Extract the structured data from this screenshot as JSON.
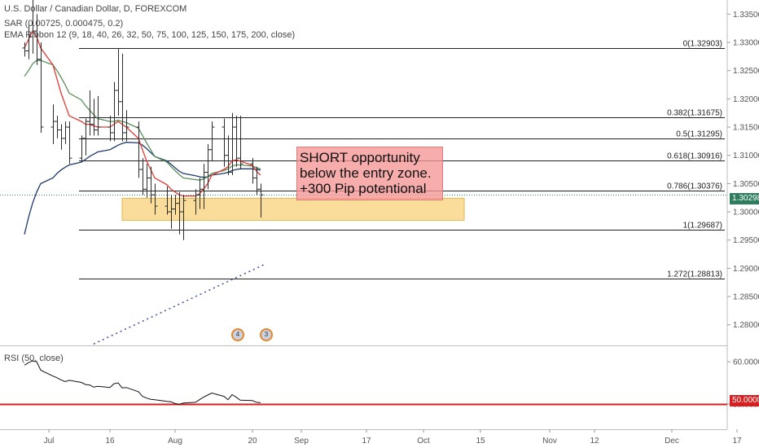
{
  "header": {
    "title": "U.S. Dollar / Canadian Dollar, D, FOREXCOM",
    "indicator_sar": "SAR (0.00725, 0.000475, 0.2)",
    "indicator_ema": "EMA Ribbon 12 (9, 18, 40, 26, 32, 50, 75, 100, 125, 150, 175, 200, close)",
    "indicator_rsi": "RSI (50, close)"
  },
  "annotation": {
    "lines": [
      "SHORT opportunity",
      "below the entry zone.",
      "+300 Pip potentional"
    ]
  },
  "price_tags": {
    "current": "1.30298",
    "rsi_level": "50.0000"
  },
  "colors": {
    "candle": "#2b2b2b",
    "ema_red": "#e53935",
    "ema_green": "#5a8f5a",
    "ema_navy": "#1f3a6e",
    "fib_line": "#222222",
    "zone_fill": "#f8d27a",
    "rsi_line": "#111111",
    "rsi_level": "#d81e1e",
    "trend_dotted": "#3a4fa0",
    "current_price": "#2e7d5e"
  },
  "events": [
    {
      "label": "4"
    },
    {
      "label": "3"
    }
  ],
  "chart_data": {
    "type": "candlestick",
    "x_axis_labels": [
      {
        "label": "Jul",
        "date": "2018-07-01"
      },
      {
        "label": "16",
        "date": "2018-07-16"
      },
      {
        "label": "Aug",
        "date": "2018-08-01"
      },
      {
        "label": "20",
        "date": "2018-08-20"
      },
      {
        "label": "Sep",
        "date": "2018-09-01"
      },
      {
        "label": "17",
        "date": "2018-09-17"
      },
      {
        "label": "Oct",
        "date": "2018-10-01"
      },
      {
        "label": "15",
        "date": "2018-10-15"
      },
      {
        "label": "Nov",
        "date": "2018-11-01"
      },
      {
        "label": "12",
        "date": "2018-11-12"
      },
      {
        "label": "Dec",
        "date": "2018-12-01"
      },
      {
        "label": "17",
        "date": "2018-12-17"
      }
    ],
    "price_axis": {
      "range": [
        1.2765,
        1.3375
      ],
      "ticks": [
        "1.33500",
        "1.33000",
        "1.32500",
        "1.32000",
        "1.31500",
        "1.31000",
        "1.30500",
        "1.30000",
        "1.29500",
        "1.29000",
        "1.28500",
        "1.28000"
      ]
    },
    "fibonacci": [
      {
        "level": "0",
        "price": 1.32903,
        "label": "0(1.32903)"
      },
      {
        "level": "0.382",
        "price": 1.31675,
        "label": "0.382(1.31675)"
      },
      {
        "level": "0.5",
        "price": 1.31295,
        "label": "0.5(1.31295)"
      },
      {
        "level": "0.618",
        "price": 1.30916,
        "label": "0.618(1.30916)"
      },
      {
        "level": "0.786",
        "price": 1.30376,
        "label": "0.786(1.30376)"
      },
      {
        "level": "1",
        "price": 1.29687,
        "label": "1(1.29687)"
      },
      {
        "level": "1.272",
        "price": 1.28813,
        "label": "1.272(1.28813)"
      }
    ],
    "entry_zone": {
      "from_date": "2018-07-19",
      "to_date": "2018-10-11",
      "low": 1.2985,
      "high": 1.3024
    },
    "current_price": 1.30298,
    "trend_line": {
      "from": {
        "date": "2018-07-12",
        "price": 1.2766
      },
      "to": {
        "date": "2018-08-23",
        "price": 1.2907
      }
    },
    "candles": [
      {
        "date": "2018-06-25",
        "o": 1.329,
        "h": 1.33,
        "l": 1.3275,
        "c": 1.3285
      },
      {
        "date": "2018-06-26",
        "o": 1.3285,
        "h": 1.333,
        "l": 1.327,
        "c": 1.331
      },
      {
        "date": "2018-06-27",
        "o": 1.331,
        "h": 1.3385,
        "l": 1.328,
        "c": 1.332
      },
      {
        "date": "2018-06-28",
        "o": 1.332,
        "h": 1.335,
        "l": 1.326,
        "c": 1.327
      },
      {
        "date": "2018-06-29",
        "o": 1.327,
        "h": 1.33,
        "l": 1.314,
        "c": 1.315
      },
      {
        "date": "2018-07-02",
        "o": 1.315,
        "h": 1.319,
        "l": 1.312,
        "c": 1.316
      },
      {
        "date": "2018-07-03",
        "o": 1.316,
        "h": 1.317,
        "l": 1.313,
        "c": 1.3145
      },
      {
        "date": "2018-07-04",
        "o": 1.3145,
        "h": 1.3155,
        "l": 1.311,
        "c": 1.313
      },
      {
        "date": "2018-07-05",
        "o": 1.313,
        "h": 1.316,
        "l": 1.312,
        "c": 1.315
      },
      {
        "date": "2018-07-06",
        "o": 1.315,
        "h": 1.316,
        "l": 1.3085,
        "c": 1.3095
      },
      {
        "date": "2018-07-09",
        "o": 1.3095,
        "h": 1.3135,
        "l": 1.309,
        "c": 1.313
      },
      {
        "date": "2018-07-10",
        "o": 1.313,
        "h": 1.3165,
        "l": 1.31,
        "c": 1.316
      },
      {
        "date": "2018-07-11",
        "o": 1.316,
        "h": 1.3215,
        "l": 1.3135,
        "c": 1.3155
      },
      {
        "date": "2018-07-12",
        "o": 1.3155,
        "h": 1.32,
        "l": 1.3135,
        "c": 1.3145
      },
      {
        "date": "2018-07-13",
        "o": 1.3145,
        "h": 1.3205,
        "l": 1.3135,
        "c": 1.315
      },
      {
        "date": "2018-07-16",
        "o": 1.315,
        "h": 1.317,
        "l": 1.3125,
        "c": 1.314
      },
      {
        "date": "2018-07-17",
        "o": 1.314,
        "h": 1.323,
        "l": 1.3125,
        "c": 1.3215
      },
      {
        "date": "2018-07-18",
        "o": 1.3215,
        "h": 1.329,
        "l": 1.317,
        "c": 1.3195
      },
      {
        "date": "2018-07-19",
        "o": 1.3195,
        "h": 1.328,
        "l": 1.3125,
        "c": 1.314
      },
      {
        "date": "2018-07-20",
        "o": 1.314,
        "h": 1.318,
        "l": 1.3125,
        "c": 1.315
      },
      {
        "date": "2018-07-23",
        "o": 1.315,
        "h": 1.316,
        "l": 1.306,
        "c": 1.3075
      },
      {
        "date": "2018-07-24",
        "o": 1.3075,
        "h": 1.3095,
        "l": 1.303,
        "c": 1.304
      },
      {
        "date": "2018-07-25",
        "o": 1.304,
        "h": 1.3085,
        "l": 1.3025,
        "c": 1.306
      },
      {
        "date": "2018-07-26",
        "o": 1.306,
        "h": 1.308,
        "l": 1.3015,
        "c": 1.303
      },
      {
        "date": "2018-07-27",
        "o": 1.303,
        "h": 1.305,
        "l": 1.2995,
        "c": 1.301
      },
      {
        "date": "2018-07-30",
        "o": 1.301,
        "h": 1.3045,
        "l": 1.2995,
        "c": 1.3
      },
      {
        "date": "2018-07-31",
        "o": 1.3,
        "h": 1.303,
        "l": 1.297,
        "c": 1.3005
      },
      {
        "date": "2018-08-01",
        "o": 1.3005,
        "h": 1.303,
        "l": 1.2995,
        "c": 1.3015
      },
      {
        "date": "2018-08-02",
        "o": 1.3015,
        "h": 1.3035,
        "l": 1.296,
        "c": 1.3
      },
      {
        "date": "2018-08-03",
        "o": 1.3,
        "h": 1.303,
        "l": 1.295,
        "c": 1.302
      },
      {
        "date": "2018-08-06",
        "o": 1.302,
        "h": 1.304,
        "l": 1.2995,
        "c": 1.303
      },
      {
        "date": "2018-08-07",
        "o": 1.303,
        "h": 1.306,
        "l": 1.3005,
        "c": 1.304
      },
      {
        "date": "2018-08-08",
        "o": 1.304,
        "h": 1.3085,
        "l": 1.3005,
        "c": 1.307
      },
      {
        "date": "2018-08-09",
        "o": 1.307,
        "h": 1.312,
        "l": 1.304,
        "c": 1.311
      },
      {
        "date": "2018-08-10",
        "o": 1.311,
        "h": 1.316,
        "l": 1.309,
        "c": 1.315
      },
      {
        "date": "2018-08-13",
        "o": 1.315,
        "h": 1.3165,
        "l": 1.308,
        "c": 1.31
      },
      {
        "date": "2018-08-14",
        "o": 1.31,
        "h": 1.3135,
        "l": 1.3065,
        "c": 1.307
      },
      {
        "date": "2018-08-15",
        "o": 1.307,
        "h": 1.3175,
        "l": 1.3065,
        "c": 1.315
      },
      {
        "date": "2018-08-16",
        "o": 1.315,
        "h": 1.317,
        "l": 1.308,
        "c": 1.3095
      },
      {
        "date": "2018-08-17",
        "o": 1.3095,
        "h": 1.317,
        "l": 1.3075,
        "c": 1.3085
      },
      {
        "date": "2018-08-20",
        "o": 1.3085,
        "h": 1.3095,
        "l": 1.305,
        "c": 1.306
      },
      {
        "date": "2018-08-21",
        "o": 1.306,
        "h": 1.308,
        "l": 1.303,
        "c": 1.304
      },
      {
        "date": "2018-08-22",
        "o": 1.304,
        "h": 1.305,
        "l": 1.299,
        "c": 1.303
      }
    ],
    "ema_red": [
      1.329,
      1.3305,
      1.332,
      1.331,
      1.329,
      1.326,
      1.3235,
      1.321,
      1.319,
      1.317,
      1.316,
      1.3155,
      1.3155,
      1.3152,
      1.315,
      1.315,
      1.3155,
      1.316,
      1.3155,
      1.315,
      1.313,
      1.311,
      1.309,
      1.3075,
      1.306,
      1.3048,
      1.304,
      1.3035,
      1.303,
      1.3028,
      1.3028,
      1.3032,
      1.304,
      1.305,
      1.3065,
      1.3075,
      1.308,
      1.309,
      1.3092,
      1.309,
      1.3082,
      1.3072,
      1.3065
    ],
    "ema_green": [
      1.324,
      1.325,
      1.3262,
      1.3268,
      1.3268,
      1.326,
      1.325,
      1.3238,
      1.3225,
      1.321,
      1.3198,
      1.3188,
      1.318,
      1.3172,
      1.3165,
      1.316,
      1.316,
      1.3162,
      1.316,
      1.3158,
      1.3148,
      1.3135,
      1.3122,
      1.311,
      1.3098,
      1.3088,
      1.308,
      1.3073,
      1.3066,
      1.306,
      1.3057,
      1.3056,
      1.3058,
      1.3062,
      1.3068,
      1.3073,
      1.3076,
      1.3081,
      1.3083,
      1.3083,
      1.3081,
      1.3078,
      1.3076
    ],
    "ema_navy": [
      1.296,
      1.299,
      1.3015,
      1.3035,
      1.305,
      1.306,
      1.3068,
      1.3074,
      1.3079,
      1.3083,
      1.3088,
      1.3093,
      1.3098,
      1.3102,
      1.3106,
      1.311,
      1.3114,
      1.3118,
      1.3121,
      1.3123,
      1.3122,
      1.3118,
      1.3112,
      1.3105,
      1.3098,
      1.309,
      1.3084,
      1.3078,
      1.3072,
      1.3068,
      1.3064,
      1.3062,
      1.3061,
      1.3062,
      1.3065,
      1.3068,
      1.307,
      1.3073,
      1.3075,
      1.3076,
      1.3076,
      1.3075,
      1.3074
    ],
    "rsi": {
      "range": [
        44.0,
        63.5
      ],
      "ticks": [
        "60.0000",
        "50.0000"
      ],
      "level": 50.0,
      "values": [
        59.2,
        59.8,
        60.2,
        60.0,
        58.0,
        56.6,
        56.2,
        55.7,
        55.3,
        55.6,
        55.1,
        54.6,
        54.5,
        54.0,
        54.2,
        53.9,
        54.8,
        55.0,
        53.8,
        53.9,
        52.9,
        51.8,
        51.4,
        51.1,
        51.0,
        50.6,
        50.5,
        50.1,
        49.9,
        50.2,
        50.4,
        51.0,
        51.6,
        52.1,
        52.6,
        51.8,
        51.0,
        52.2,
        51.6,
        50.9,
        50.8,
        50.4,
        50.3
      ]
    }
  }
}
